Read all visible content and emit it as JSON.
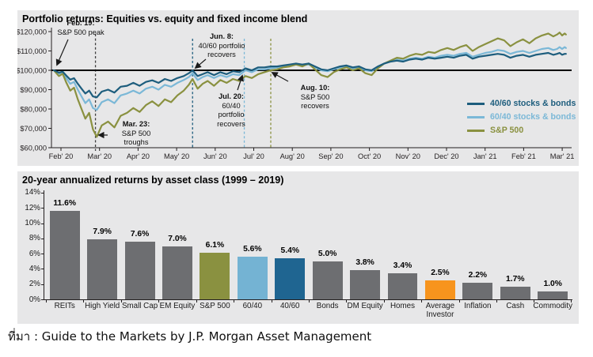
{
  "source_line": "ที่มา : Guide to the Markets by J.P. Morgan Asset Management",
  "top_chart": {
    "title": "Portfolio returns: Equities vs. equity and fixed income blend",
    "annotations": {
      "feb19": {
        "l1": "Feb. 19:",
        "l2": "S&P 500 peak"
      },
      "mar23": {
        "l1": "Mar. 23:",
        "l2": "S&P 500",
        "l3": "troughs"
      },
      "jun8": {
        "l1": "Jun. 8:",
        "l2": "40/60 portfolio",
        "l3": "recovers"
      },
      "jul20": {
        "l1": "Jul. 20:",
        "l2": "60/40",
        "l3": "portfolio",
        "l4": "recovers"
      },
      "aug10": {
        "l1": "Aug. 10:",
        "l2": "S&P 500",
        "l3": "recovers"
      }
    }
  },
  "bottom_chart": {
    "title": "20-year annualized returns by asset class (1999 – 2019)"
  },
  "chart_data": [
    {
      "type": "line",
      "title": "Portfolio returns: Equities vs. equity and fixed income blend",
      "x_unit": "days since Feb 19, 2020 (start value $100,000)",
      "x_ticks": [
        "Feb' 20",
        "Mar' 20",
        "Apr' 20",
        "May' 20",
        "Jun' 20",
        "Jul' 20",
        "Aug' 20",
        "Sep' 20",
        "Oct' 20",
        "Nov' 20",
        "Dec' 20",
        "Jan' 21",
        "Feb' 21",
        "Mar' 21"
      ],
      "y_ticks": [
        "$120,000",
        "$110,000",
        "$100,000",
        "$90,000",
        "$80,000",
        "$70,000",
        "$60,000"
      ],
      "y_tick_values": [
        120000,
        110000,
        100000,
        90000,
        80000,
        70000,
        60000
      ],
      "ylim": [
        60000,
        120000
      ],
      "baseline_value": 100000,
      "legend_position": "right-bottom-inside",
      "grid": false,
      "events": [
        {
          "day": 33,
          "label": "Mar. 23: S&P 500 troughs",
          "color": "#404040"
        },
        {
          "day": 110,
          "label": "Jun. 8: 40/60 portfolio recovers",
          "color": "#1d5d7d"
        },
        {
          "day": 151,
          "label": "Jul. 20: 60/40 portfolio recovers",
          "color": "#7bb8d7"
        },
        {
          "day": 172,
          "label": "Aug. 10: S&P 500 recovers",
          "color": "#8a9140"
        }
      ],
      "x_days": [
        0,
        4,
        7,
        10,
        13,
        16,
        19,
        22,
        25,
        28,
        31,
        34,
        38,
        43,
        48,
        53,
        58,
        63,
        68,
        73,
        78,
        83,
        88,
        93,
        98,
        103,
        107,
        110,
        114,
        118,
        122,
        127,
        132,
        137,
        142,
        147,
        152,
        157,
        162,
        167,
        172,
        177,
        182,
        187,
        192,
        197,
        202,
        207,
        212,
        217,
        222,
        227,
        232,
        237,
        242,
        247,
        252,
        257,
        262,
        267,
        272,
        277,
        282,
        287,
        292,
        297,
        302,
        307,
        312,
        317,
        322,
        327,
        332,
        337,
        342,
        347,
        352,
        357,
        362,
        367,
        372,
        377,
        382,
        387,
        392,
        396,
        399,
        401,
        403,
        405,
        406
      ],
      "series": [
        {
          "name": "40/60 stocks & bonds",
          "color": "#1d5d7d",
          "values": [
            100000,
            98800,
            99300,
            97200,
            95200,
            95900,
            93000,
            90500,
            88000,
            89500,
            86500,
            86000,
            89000,
            90000,
            88500,
            91500,
            92000,
            93500,
            92000,
            94000,
            94800,
            93500,
            95500,
            94500,
            96000,
            97000,
            98500,
            100000,
            97000,
            98000,
            99000,
            97500,
            99000,
            98000,
            99500,
            99000,
            101000,
            100000,
            101500,
            101500,
            102000,
            102000,
            102500,
            103000,
            103500,
            103000,
            103500,
            102000,
            100500,
            100000,
            101000,
            102000,
            102500,
            101500,
            102000,
            100500,
            100000,
            102000,
            103500,
            104500,
            105000,
            104500,
            105500,
            106000,
            105500,
            106500,
            106000,
            106500,
            107000,
            106500,
            107500,
            108000,
            106000,
            107000,
            107500,
            108000,
            108500,
            108000,
            106500,
            107500,
            108000,
            107000,
            108000,
            108500,
            109000,
            108000,
            108500,
            109000,
            108000,
            108500,
            108500
          ]
        },
        {
          "name": "60/40 stocks & bonds",
          "color": "#7bb8d7",
          "values": [
            100000,
            98200,
            98900,
            95800,
            93000,
            94000,
            90000,
            86500,
            83000,
            85000,
            80500,
            79500,
            83500,
            85000,
            83000,
            87000,
            88000,
            89500,
            88000,
            90500,
            91500,
            90000,
            92500,
            91500,
            93500,
            95000,
            96500,
            98500,
            95000,
            96500,
            97500,
            96000,
            97500,
            96500,
            98000,
            97500,
            100000,
            99000,
            100500,
            100500,
            101000,
            101500,
            102000,
            102500,
            103000,
            102500,
            103000,
            101500,
            100000,
            99500,
            100500,
            101500,
            102000,
            101000,
            101500,
            100000,
            99500,
            102000,
            103500,
            104500,
            105500,
            105000,
            106000,
            106500,
            106000,
            107000,
            106500,
            107500,
            108000,
            107500,
            108500,
            109000,
            107000,
            108000,
            109000,
            109500,
            110500,
            110000,
            108500,
            109500,
            110000,
            109000,
            110000,
            111000,
            111500,
            110500,
            111000,
            112000,
            111000,
            112000,
            111500
          ]
        },
        {
          "name": "S&P 500",
          "color": "#8a9140",
          "values": [
            100000,
            97000,
            98200,
            93500,
            89500,
            91000,
            85000,
            80000,
            75000,
            78000,
            69500,
            65600,
            71500,
            73500,
            70500,
            76500,
            78000,
            80500,
            78500,
            82000,
            84000,
            81500,
            85000,
            83500,
            87000,
            89500,
            92500,
            95500,
            90500,
            93000,
            94500,
            92000,
            95000,
            93500,
            95500,
            94500,
            97000,
            96000,
            98000,
            99000,
            100000,
            100500,
            101500,
            102000,
            103000,
            102000,
            103500,
            100500,
            97500,
            96500,
            99000,
            100500,
            101500,
            100000,
            101000,
            98500,
            97500,
            101000,
            103500,
            105000,
            106500,
            106000,
            107500,
            108500,
            108000,
            109500,
            109000,
            110500,
            111500,
            110500,
            112000,
            113000,
            110000,
            112000,
            113500,
            115000,
            116500,
            115500,
            112500,
            114500,
            116000,
            114000,
            116500,
            118000,
            119000,
            117500,
            118500,
            119500,
            118000,
            119000,
            118500
          ]
        }
      ]
    },
    {
      "type": "bar",
      "title": "20-year annualized returns by asset class (1999 – 2019)",
      "categories": [
        "REITs",
        "High Yield",
        "Small Cap",
        "EM Equity",
        "S&P 500",
        "60/40",
        "40/60",
        "Bonds",
        "DM Equity",
        "Homes",
        "Average Investor",
        "Inflation",
        "Cash",
        "Commodity"
      ],
      "values": [
        11.6,
        7.9,
        7.6,
        7.0,
        6.1,
        5.6,
        5.4,
        5.0,
        3.8,
        3.4,
        2.5,
        2.2,
        1.7,
        1.0
      ],
      "value_labels": [
        "11.6%",
        "7.9%",
        "7.6%",
        "7.0%",
        "6.1%",
        "5.6%",
        "5.4%",
        "5.0%",
        "3.8%",
        "3.4%",
        "2.5%",
        "2.2%",
        "1.7%",
        "1.0%"
      ],
      "colors": [
        "#6d6e71",
        "#6d6e71",
        "#6d6e71",
        "#6d6e71",
        "#8a9140",
        "#74b3d3",
        "#1f6591",
        "#6d6e71",
        "#6d6e71",
        "#6d6e71",
        "#f7941d",
        "#6d6e71",
        "#6d6e71",
        "#6d6e71"
      ],
      "y_ticks": [
        "0%",
        "2%",
        "4%",
        "6%",
        "8%",
        "10%",
        "12%",
        "14%"
      ],
      "ylim": [
        0,
        14
      ],
      "grid": false
    }
  ]
}
